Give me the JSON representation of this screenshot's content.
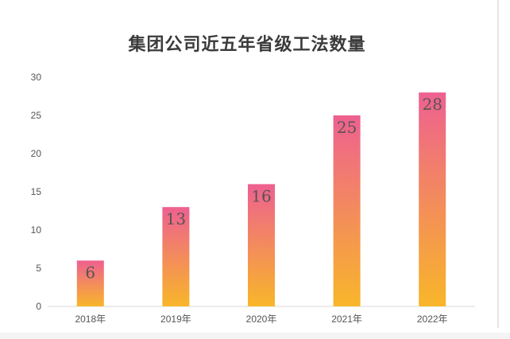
{
  "chart_data": {
    "type": "bar",
    "title": "集团公司近五年省级工法数量",
    "categories": [
      "2018年",
      "2019年",
      "2020年",
      "2021年",
      "2022年"
    ],
    "values": [
      6,
      13,
      16,
      25,
      28
    ],
    "data_labels": [
      "6",
      "13",
      "16",
      "25",
      "28"
    ],
    "yticks": [
      "0",
      "5",
      "10",
      "15",
      "20",
      "25",
      "30"
    ],
    "ylim": [
      0,
      30
    ],
    "grid": false,
    "legend": "none",
    "bar_gradient": {
      "top": "#ee6090",
      "bottom": "#f8b62a"
    },
    "xlabel": "",
    "ylabel": ""
  }
}
